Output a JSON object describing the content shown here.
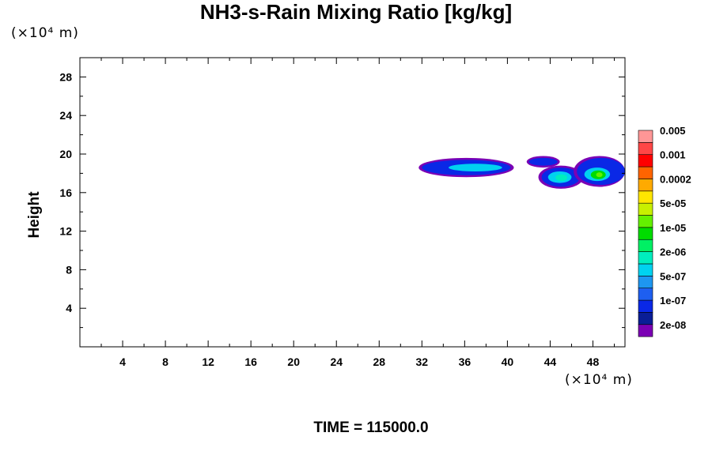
{
  "chart_data": {
    "type": "contour",
    "title": "NH3-s-Rain Mixing Ratio [kg/kg]",
    "ylabel": "Height",
    "x_unit": "(×10⁴ m)",
    "y_unit": "(×10⁴ m)",
    "xlim": [
      0,
      51
    ],
    "ylim": [
      0,
      30
    ],
    "x_ticks": [
      4,
      8,
      12,
      16,
      20,
      24,
      28,
      32,
      36,
      40,
      44,
      48
    ],
    "y_ticks": [
      4,
      8,
      12,
      16,
      20,
      24,
      28
    ],
    "colorbar": {
      "colors": [
        "#7b00b4",
        "#0a1e96",
        "#0a28e6",
        "#1e5ff0",
        "#1e96f0",
        "#00d2f0",
        "#00eebe",
        "#00f064",
        "#00dc00",
        "#64f000",
        "#c8f000",
        "#ffe600",
        "#ffaa00",
        "#ff6400",
        "#ff0000",
        "#ff4646",
        "#ff9696"
      ],
      "labels": [
        "2e-08",
        "1e-07",
        "5e-07",
        "2e-06",
        "1e-05",
        "5e-05",
        "0.0002",
        "0.001",
        "0.005"
      ]
    },
    "regions": [
      {
        "level": "2e-08",
        "color": "#7b00b4",
        "x": [
          31.7,
          40.6
        ],
        "y": [
          17.6,
          19.6
        ]
      },
      {
        "level": "1e-07",
        "color": "#0a28e6",
        "x": [
          32.0,
          40.3
        ],
        "y": [
          17.8,
          19.4
        ]
      },
      {
        "level": "5e-07",
        "color": "#00d2f0",
        "x": [
          34.5,
          39.5
        ],
        "y": [
          18.2,
          19.0
        ]
      },
      {
        "level": "2e-08",
        "color": "#7b00b4",
        "x": [
          41.8,
          44.9
        ],
        "y": [
          18.6,
          19.8
        ]
      },
      {
        "level": "1e-07",
        "color": "#0a28e6",
        "x": [
          42.0,
          44.7
        ],
        "y": [
          18.8,
          19.6
        ]
      },
      {
        "level": "2e-08",
        "color": "#7b00b4",
        "x": [
          42.9,
          47.1
        ],
        "y": [
          16.4,
          18.8
        ]
      },
      {
        "level": "1e-07",
        "color": "#0a28e6",
        "x": [
          43.2,
          46.8
        ],
        "y": [
          16.6,
          18.6
        ]
      },
      {
        "level": "5e-07",
        "color": "#00d2f0",
        "x": [
          43.8,
          46.0
        ],
        "y": [
          17.0,
          18.2
        ]
      },
      {
        "level": "2e-06",
        "color": "#00eebe",
        "x": [
          44.5,
          45.6
        ],
        "y": [
          17.2,
          17.9
        ]
      },
      {
        "level": "2e-08",
        "color": "#7b00b4",
        "x": [
          46.2,
          51.0
        ],
        "y": [
          16.6,
          19.8
        ]
      },
      {
        "level": "1e-07",
        "color": "#0a28e6",
        "x": [
          46.5,
          51.0
        ],
        "y": [
          16.8,
          19.6
        ]
      },
      {
        "level": "5e-07",
        "color": "#00d2f0",
        "x": [
          47.2,
          49.6
        ],
        "y": [
          17.2,
          18.6
        ]
      },
      {
        "level": "1e-05",
        "color": "#00dc00",
        "x": [
          47.8,
          49.2
        ],
        "y": [
          17.4,
          18.3
        ]
      },
      {
        "level": "5e-05",
        "color": "#64f000",
        "x": [
          48.3,
          48.9
        ],
        "y": [
          17.6,
          18.1
        ]
      }
    ]
  },
  "time_label": "TIME = 115000.0"
}
